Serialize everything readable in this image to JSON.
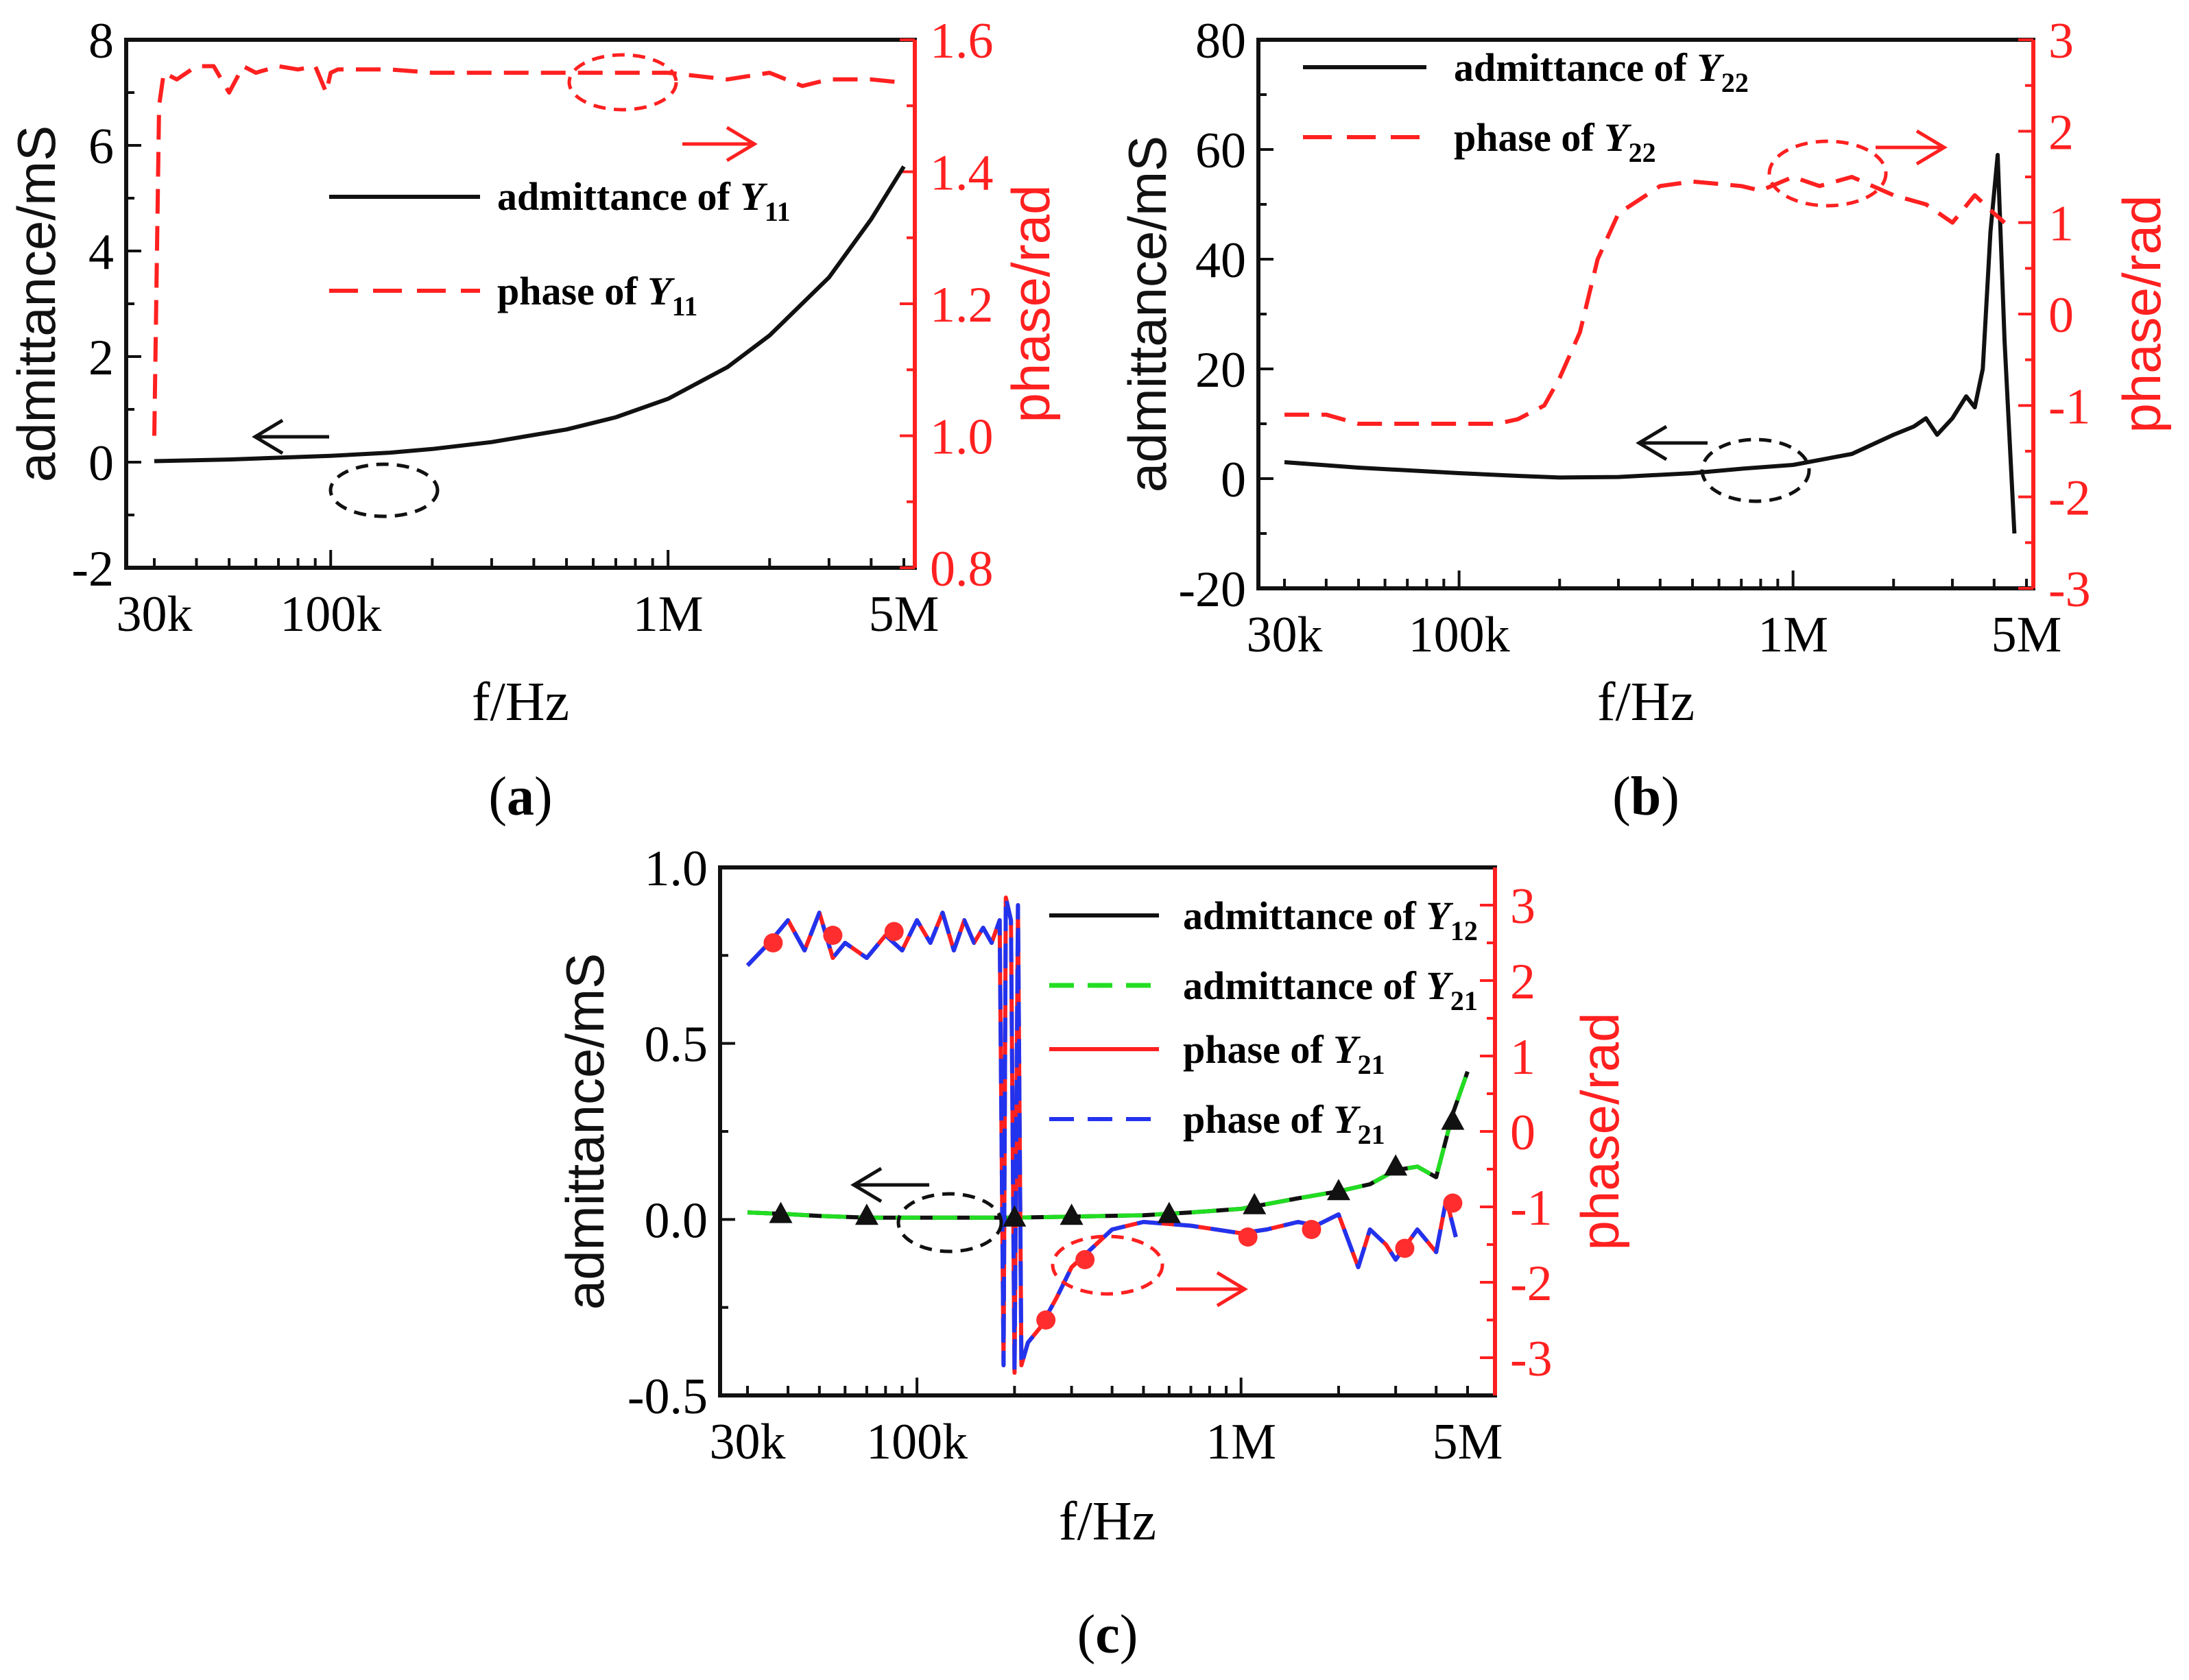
{
  "figure": {
    "x_axis_label": "f/Hz",
    "x_tick_values": [
      30000,
      100000,
      1000000,
      5000000
    ],
    "x_tick_labels": [
      "30k",
      "100k",
      "1M",
      "5M"
    ],
    "x_range": [
      30000,
      5000000
    ],
    "colors": {
      "black": "#111111",
      "red": "#ff2020",
      "green": "#22dd22",
      "blue": "#2233ee",
      "marker_red": "#ff2d2d",
      "marker_green": "#1a9a1a"
    }
  },
  "chart_data": [
    {
      "id": "a",
      "type": "line",
      "panel_label": "(a)",
      "panel_letter": "a",
      "xlabel": "f/Hz",
      "ylabel_left": "admittance/mS",
      "ylabel_right": "phase/rad",
      "left_ylim": [
        -2,
        8
      ],
      "left_ticks": [
        -2,
        0,
        2,
        4,
        6,
        8
      ],
      "right_ylim": [
        0.8,
        1.6
      ],
      "right_ticks": [
        "0.8",
        "1.0",
        "1.2",
        "1.4",
        "1.6"
      ],
      "series": [
        {
          "name": "admittance of Y11",
          "legend_text": "admittance of ",
          "legend_sym": "Y",
          "legend_sub": "11",
          "axis": "left",
          "color": "#111111",
          "dash": "solid",
          "x": [
            30000,
            50000,
            100000,
            150000,
            200000,
            300000,
            500000,
            700000,
            1000000,
            1500000,
            2000000,
            3000000,
            4000000,
            5000000
          ],
          "y": [
            0.02,
            0.05,
            0.12,
            0.18,
            0.25,
            0.38,
            0.62,
            0.85,
            1.2,
            1.8,
            2.4,
            3.5,
            4.6,
            5.6
          ]
        },
        {
          "name": "phase of Y11",
          "legend_text": "phase of ",
          "legend_sym": "Y",
          "legend_sub": "11",
          "axis": "right",
          "color": "#ff2020",
          "dash": "dashed",
          "x": [
            30000,
            31000,
            32000,
            35000,
            40000,
            45000,
            50000,
            55000,
            60000,
            70000,
            80000,
            90000,
            97000,
            100000,
            105000,
            120000,
            150000,
            200000,
            300000,
            500000,
            700000,
            1000000,
            1500000,
            2000000,
            2500000,
            3000000,
            4000000,
            5000000
          ],
          "y": [
            1.0,
            1.5,
            1.55,
            1.54,
            1.56,
            1.56,
            1.52,
            1.56,
            1.55,
            1.56,
            1.555,
            1.56,
            1.52,
            1.55,
            1.555,
            1.555,
            1.555,
            1.55,
            1.55,
            1.55,
            1.55,
            1.55,
            1.54,
            1.55,
            1.53,
            1.54,
            1.54,
            1.535
          ]
        }
      ]
    },
    {
      "id": "b",
      "type": "line",
      "panel_label": "(b)",
      "panel_letter": "b",
      "xlabel": "f/Hz",
      "ylabel_left": "admittance/mS",
      "ylabel_right": "phase/rad",
      "left_ylim": [
        -20,
        80
      ],
      "left_ticks": [
        -20,
        0,
        20,
        40,
        60,
        80
      ],
      "right_ylim": [
        -3,
        3
      ],
      "right_ticks": [
        "-3",
        "-2",
        "-1",
        "0",
        "1",
        "2",
        "3"
      ],
      "series": [
        {
          "name": "admittance of Y22",
          "legend_text": "admittance of ",
          "legend_sym": "Y",
          "legend_sub": "22",
          "axis": "left",
          "color": "#111111",
          "dash": "solid",
          "x": [
            30000,
            50000,
            100000,
            150000,
            200000,
            300000,
            500000,
            700000,
            1000000,
            1500000,
            2000000,
            2300000,
            2500000,
            2700000,
            3000000,
            3300000,
            3500000,
            3700000,
            3900000,
            4100000,
            4300000,
            4600000
          ],
          "y": [
            3,
            2,
            1,
            0.5,
            0.2,
            0.3,
            1,
            1.8,
            2.5,
            4.5,
            8,
            9.5,
            11,
            8,
            11,
            15,
            13,
            20,
            45,
            59,
            25,
            -10
          ]
        },
        {
          "name": "phase of Y22",
          "legend_text": "phase of ",
          "legend_sym": "Y",
          "legend_sub": "22",
          "axis": "right",
          "color": "#ff2020",
          "dash": "dashed",
          "x": [
            30000,
            40000,
            50000,
            70000,
            100000,
            130000,
            150000,
            180000,
            200000,
            230000,
            260000,
            300000,
            400000,
            500000,
            700000,
            800000,
            1000000,
            1200000,
            1500000,
            2000000,
            2500000,
            3000000,
            3500000,
            4000000,
            4300000
          ],
          "y": [
            -1.1,
            -1.1,
            -1.2,
            -1.2,
            -1.2,
            -1.2,
            -1.15,
            -1.0,
            -0.7,
            -0.2,
            0.6,
            1.1,
            1.4,
            1.45,
            1.4,
            1.35,
            1.5,
            1.4,
            1.5,
            1.3,
            1.2,
            1.0,
            1.3,
            1.1,
            1.0
          ]
        }
      ]
    },
    {
      "id": "c",
      "type": "line",
      "panel_label": "(c)",
      "panel_letter": "c",
      "xlabel": "f/Hz",
      "ylabel_left": "admittance/mS",
      "ylabel_right": "phase/rad",
      "left_ylim": [
        -0.5,
        1.0
      ],
      "left_ticks": [
        "-0.5",
        "0.0",
        "0.5",
        "1.0"
      ],
      "right_ylim": [
        -3.5,
        3.5
      ],
      "right_ticks": [
        "-3",
        "-2",
        "-1",
        "0",
        "1",
        "2",
        "3"
      ],
      "series": [
        {
          "name": "admittance of Y12",
          "legend_text": "admittance of ",
          "legend_sym": "Y",
          "legend_sub": "12",
          "axis": "left",
          "color": "#111111",
          "dash": "solid",
          "x": [
            30000,
            40000,
            50000,
            70000,
            100000,
            150000,
            200000,
            300000,
            500000,
            700000,
            1000000,
            1500000,
            2000000,
            2500000,
            3000000,
            3500000,
            4000000,
            4500000,
            5000000
          ],
          "y": [
            0.02,
            0.015,
            0.01,
            0.005,
            0.005,
            0.005,
            0.005,
            0.008,
            0.012,
            0.02,
            0.03,
            0.06,
            0.08,
            0.1,
            0.14,
            0.15,
            0.12,
            0.3,
            0.42
          ]
        },
        {
          "name": "admittance of Y21",
          "legend_text": "admittance of ",
          "legend_sym": "Y",
          "legend_sub": "21",
          "axis": "left",
          "color": "#22dd22",
          "dash": "dashed",
          "x": [
            30000,
            40000,
            50000,
            70000,
            100000,
            150000,
            200000,
            300000,
            500000,
            700000,
            1000000,
            1500000,
            2000000,
            2500000,
            3000000,
            3500000,
            4000000,
            4500000,
            5000000
          ],
          "y": [
            0.02,
            0.015,
            0.01,
            0.005,
            0.005,
            0.005,
            0.005,
            0.008,
            0.012,
            0.02,
            0.03,
            0.06,
            0.08,
            0.1,
            0.14,
            0.15,
            0.12,
            0.3,
            0.42
          ]
        },
        {
          "name": "phase of Y21",
          "legend_text": "phase of ",
          "legend_sym": "Y",
          "legend_sub": "21",
          "axis": "right",
          "color": "#ff2020",
          "dash": "solid",
          "x": [
            30000,
            35000,
            40000,
            45000,
            50000,
            55000,
            60000,
            70000,
            80000,
            90000,
            100000,
            110000,
            120000,
            130000,
            140000,
            150000,
            160000,
            170000,
            180000,
            185000,
            188000,
            195000,
            200000,
            205000,
            210000,
            220000,
            240000,
            270000,
            300000,
            400000,
            500000,
            700000,
            1000000,
            1200000,
            1500000,
            1700000,
            2000000,
            2300000,
            2500000,
            2800000,
            3000000,
            3500000,
            4000000,
            4300000,
            4600000
          ],
          "y": [
            2.2,
            2.5,
            2.8,
            2.4,
            2.9,
            2.3,
            2.5,
            2.3,
            2.6,
            2.4,
            2.8,
            2.5,
            2.9,
            2.4,
            2.8,
            2.5,
            2.7,
            2.5,
            2.8,
            -3.1,
            3.1,
            2.8,
            -3.2,
            3.0,
            -3.1,
            -2.8,
            -2.6,
            -2.2,
            -1.8,
            -1.3,
            -1.2,
            -1.25,
            -1.35,
            -1.3,
            -1.2,
            -1.25,
            -1.1,
            -1.8,
            -1.3,
            -1.5,
            -1.7,
            -1.3,
            -1.6,
            -0.9,
            -1.4
          ]
        },
        {
          "name": "phase of Y21",
          "legend_text": "phase of ",
          "legend_sym": "Y",
          "legend_sub": "21",
          "axis": "right",
          "color": "#2233ee",
          "dash": "dashed",
          "x": [
            30000,
            35000,
            40000,
            45000,
            50000,
            55000,
            60000,
            70000,
            80000,
            90000,
            100000,
            110000,
            120000,
            130000,
            140000,
            150000,
            160000,
            170000,
            180000,
            185000,
            188000,
            195000,
            200000,
            205000,
            210000,
            220000,
            240000,
            270000,
            300000,
            400000,
            500000,
            700000,
            1000000,
            1200000,
            1500000,
            1700000,
            2000000,
            2300000,
            2500000,
            2800000,
            3000000,
            3500000,
            4000000,
            4300000,
            4600000
          ],
          "y": [
            2.2,
            2.5,
            2.8,
            2.4,
            2.9,
            2.3,
            2.5,
            2.3,
            2.6,
            2.4,
            2.8,
            2.5,
            2.9,
            2.4,
            2.8,
            2.5,
            2.7,
            2.5,
            2.8,
            -3.1,
            3.1,
            2.8,
            -3.2,
            3.0,
            -3.1,
            -2.8,
            -2.6,
            -2.2,
            -1.8,
            -1.3,
            -1.2,
            -1.25,
            -1.35,
            -1.3,
            -1.2,
            -1.25,
            -1.1,
            -1.8,
            -1.3,
            -1.5,
            -1.7,
            -1.3,
            -1.6,
            -0.9,
            -1.4
          ]
        }
      ],
      "markers": [
        {
          "shape": "triangle",
          "axis": "left",
          "color": "#1a9a1a",
          "x": [
            38000,
            70000,
            200000,
            300000,
            600000,
            1100000,
            2000000,
            3000000,
            4500000
          ],
          "y": [
            0.015,
            0.01,
            0.005,
            0.01,
            0.015,
            0.04,
            0.08,
            0.15,
            0.28
          ]
        },
        {
          "shape": "circle",
          "axis": "right",
          "color": "#ff2d2d",
          "x": [
            36000,
            55000,
            85000,
            250000,
            330000,
            1050000,
            1650000,
            3200000,
            4500000
          ],
          "y": [
            2.5,
            2.6,
            2.65,
            -2.5,
            -1.7,
            -1.4,
            -1.3,
            -1.55,
            -0.95
          ]
        }
      ]
    }
  ]
}
